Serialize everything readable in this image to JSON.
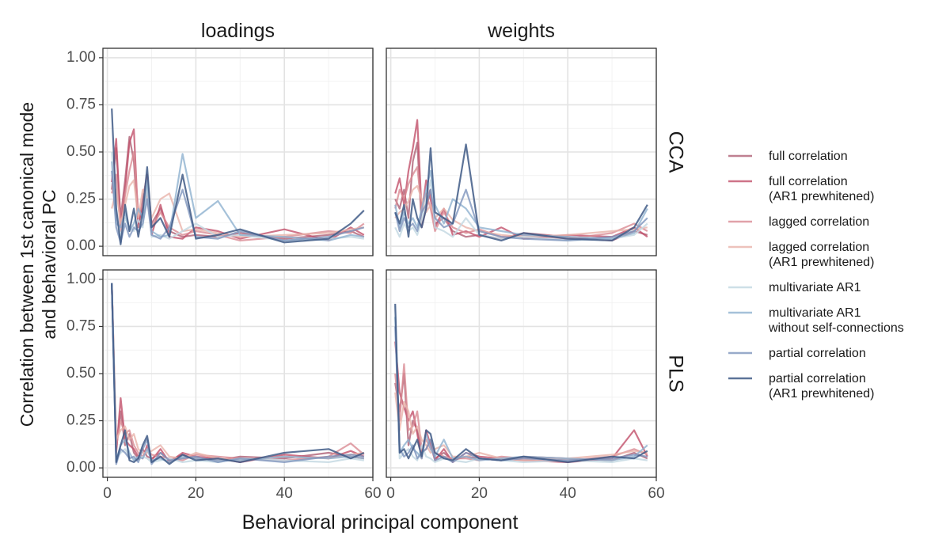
{
  "chart_data": {
    "type": "line",
    "layout": "facet-grid-2x2",
    "column_strips": [
      "loadings",
      "weights"
    ],
    "row_strips": [
      "CCA",
      "PLS"
    ],
    "xlabel": "Behavioral principal component",
    "ylabel_lines": [
      "Correlation between 1st canonical mode",
      "and behavioral PC"
    ],
    "xlim": [
      -1,
      60
    ],
    "ylim": [
      -0.05,
      1.05
    ],
    "x_ticks": [
      0,
      20,
      40,
      60
    ],
    "x_tick_labels": [
      "0",
      "20",
      "40",
      "60"
    ],
    "y_ticks": [
      0,
      0.25,
      0.5,
      0.75,
      1.0
    ],
    "y_tick_labels": [
      "0.00",
      "0.25",
      "0.50",
      "0.75",
      "1.00"
    ],
    "grid": true,
    "legend_position": "right",
    "series": [
      {
        "name": "full correlation",
        "label_lines": [
          "full correlation"
        ],
        "color": "#a9566c",
        "opacity": 0.75
      },
      {
        "name": "full correlation (AR1 prewhitened)",
        "label_lines": [
          "full correlation",
          "(AR1 prewhitened)"
        ],
        "color": "#c2506a",
        "opacity": 0.8
      },
      {
        "name": "lagged correlation",
        "label_lines": [
          "lagged correlation"
        ],
        "color": "#d98b94",
        "opacity": 0.8
      },
      {
        "name": "lagged correlation (AR1 prewhitened)",
        "label_lines": [
          "lagged correlation",
          "(AR1 prewhitened)"
        ],
        "color": "#e9b3aa",
        "opacity": 0.8
      },
      {
        "name": "multivariate AR1",
        "label_lines": [
          "multivariate AR1"
        ],
        "color": "#c5d9e3",
        "opacity": 0.85
      },
      {
        "name": "multivariate AR1 without self-connections",
        "label_lines": [
          "multivariate AR1",
          "without self-connections"
        ],
        "color": "#8fb1cf",
        "opacity": 0.8
      },
      {
        "name": "partial correlation",
        "label_lines": [
          "partial correlation"
        ],
        "color": "#7e95bd",
        "opacity": 0.8
      },
      {
        "name": "partial correlation (AR1 prewhitened)",
        "label_lines": [
          "partial correlation",
          "(AR1 prewhitened)"
        ],
        "color": "#3f5a86",
        "opacity": 0.85
      }
    ],
    "panels": [
      {
        "id": "cca-loadings",
        "col": 0,
        "row": 0,
        "x": [
          1,
          2,
          3,
          4,
          5,
          6,
          7,
          8,
          9,
          10,
          12,
          14,
          17,
          20,
          25,
          30,
          40,
          50,
          55,
          58
        ],
        "values": [
          [
            0.3,
            0.52,
            0.15,
            0.35,
            0.58,
            0.45,
            0.1,
            0.25,
            0.38,
            0.12,
            0.2,
            0.08,
            0.05,
            0.06,
            0.05,
            0.07,
            0.04,
            0.06,
            0.08,
            0.05
          ],
          [
            0.34,
            0.57,
            0.1,
            0.3,
            0.55,
            0.62,
            0.12,
            0.2,
            0.28,
            0.06,
            0.22,
            0.05,
            0.04,
            0.1,
            0.08,
            0.04,
            0.09,
            0.03,
            0.1,
            0.06
          ],
          [
            0.28,
            0.38,
            0.08,
            0.27,
            0.4,
            0.5,
            0.18,
            0.22,
            0.3,
            0.1,
            0.18,
            0.1,
            0.06,
            0.08,
            0.06,
            0.03,
            0.05,
            0.08,
            0.07,
            0.12
          ],
          [
            0.2,
            0.3,
            0.12,
            0.22,
            0.32,
            0.35,
            0.15,
            0.3,
            0.25,
            0.15,
            0.25,
            0.28,
            0.08,
            0.09,
            0.07,
            0.05,
            0.06,
            0.07,
            0.09,
            0.1
          ],
          [
            0.5,
            0.2,
            0.05,
            0.15,
            0.1,
            0.08,
            0.14,
            0.1,
            0.32,
            0.05,
            0.06,
            0.04,
            0.08,
            0.12,
            0.05,
            0.06,
            0.03,
            0.04,
            0.05,
            0.04
          ],
          [
            0.45,
            0.12,
            0.1,
            0.18,
            0.08,
            0.12,
            0.2,
            0.15,
            0.35,
            0.08,
            0.05,
            0.06,
            0.49,
            0.15,
            0.24,
            0.06,
            0.05,
            0.03,
            0.06,
            0.05
          ],
          [
            0.4,
            0.1,
            0.02,
            0.12,
            0.05,
            0.1,
            0.08,
            0.12,
            0.25,
            0.06,
            0.04,
            0.1,
            0.3,
            0.05,
            0.04,
            0.08,
            0.03,
            0.05,
            0.08,
            0.1
          ],
          [
            0.73,
            0.2,
            0.01,
            0.22,
            0.08,
            0.2,
            0.05,
            0.18,
            0.42,
            0.1,
            0.15,
            0.05,
            0.38,
            0.04,
            0.06,
            0.09,
            0.02,
            0.04,
            0.12,
            0.19
          ]
        ]
      },
      {
        "id": "cca-weights",
        "col": 1,
        "row": 0,
        "x": [
          1,
          2,
          3,
          4,
          5,
          6,
          7,
          8,
          9,
          10,
          12,
          14,
          17,
          20,
          25,
          30,
          40,
          50,
          55,
          58
        ],
        "values": [
          [
            0.25,
            0.2,
            0.3,
            0.15,
            0.45,
            0.55,
            0.1,
            0.2,
            0.3,
            0.12,
            0.15,
            0.08,
            0.05,
            0.06,
            0.04,
            0.07,
            0.05,
            0.03,
            0.08,
            0.06
          ],
          [
            0.28,
            0.36,
            0.22,
            0.4,
            0.52,
            0.67,
            0.18,
            0.35,
            0.25,
            0.1,
            0.2,
            0.06,
            0.08,
            0.05,
            0.1,
            0.04,
            0.06,
            0.05,
            0.1,
            0.05
          ],
          [
            0.2,
            0.3,
            0.25,
            0.33,
            0.38,
            0.42,
            0.2,
            0.28,
            0.2,
            0.08,
            0.18,
            0.1,
            0.07,
            0.09,
            0.05,
            0.06,
            0.04,
            0.07,
            0.12,
            0.08
          ],
          [
            0.15,
            0.18,
            0.2,
            0.24,
            0.3,
            0.32,
            0.25,
            0.18,
            0.22,
            0.15,
            0.2,
            0.14,
            0.1,
            0.08,
            0.06,
            0.05,
            0.06,
            0.08,
            0.09,
            0.1
          ],
          [
            0.1,
            0.05,
            0.12,
            0.08,
            0.1,
            0.06,
            0.14,
            0.25,
            0.35,
            0.1,
            0.08,
            0.05,
            0.15,
            0.06,
            0.04,
            0.05,
            0.03,
            0.04,
            0.06,
            0.12
          ],
          [
            0.22,
            0.1,
            0.18,
            0.12,
            0.15,
            0.1,
            0.2,
            0.3,
            0.4,
            0.22,
            0.12,
            0.25,
            0.2,
            0.1,
            0.08,
            0.06,
            0.05,
            0.04,
            0.07,
            0.2
          ],
          [
            0.18,
            0.08,
            0.15,
            0.1,
            0.12,
            0.08,
            0.18,
            0.22,
            0.3,
            0.15,
            0.1,
            0.12,
            0.3,
            0.08,
            0.05,
            0.04,
            0.03,
            0.05,
            0.08,
            0.15
          ],
          [
            0.18,
            0.12,
            0.22,
            0.05,
            0.25,
            0.15,
            0.1,
            0.2,
            0.52,
            0.18,
            0.15,
            0.12,
            0.54,
            0.06,
            0.03,
            0.07,
            0.04,
            0.03,
            0.1,
            0.22
          ]
        ]
      },
      {
        "id": "pls-loadings",
        "col": 0,
        "row": 1,
        "x": [
          1,
          2,
          3,
          4,
          5,
          6,
          7,
          8,
          9,
          10,
          12,
          14,
          17,
          20,
          25,
          30,
          40,
          50,
          55,
          58
        ],
        "values": [
          [
            0.98,
            0.1,
            0.3,
            0.12,
            0.18,
            0.08,
            0.05,
            0.1,
            0.06,
            0.05,
            0.08,
            0.04,
            0.07,
            0.05,
            0.04,
            0.06,
            0.05,
            0.08,
            0.06,
            0.05
          ],
          [
            0.98,
            0.08,
            0.37,
            0.15,
            0.12,
            0.1,
            0.06,
            0.05,
            0.12,
            0.04,
            0.1,
            0.03,
            0.08,
            0.06,
            0.05,
            0.03,
            0.07,
            0.05,
            0.09,
            0.06
          ],
          [
            0.98,
            0.12,
            0.25,
            0.18,
            0.2,
            0.12,
            0.08,
            0.06,
            0.1,
            0.07,
            0.06,
            0.05,
            0.04,
            0.07,
            0.06,
            0.05,
            0.04,
            0.06,
            0.13,
            0.07
          ],
          [
            0.98,
            0.15,
            0.2,
            0.22,
            0.15,
            0.18,
            0.1,
            0.08,
            0.08,
            0.09,
            0.12,
            0.06,
            0.05,
            0.08,
            0.05,
            0.04,
            0.06,
            0.05,
            0.07,
            0.08
          ],
          [
            0.98,
            0.05,
            0.08,
            0.1,
            0.06,
            0.05,
            0.04,
            0.06,
            0.05,
            0.03,
            0.04,
            0.05,
            0.03,
            0.04,
            0.03,
            0.05,
            0.04,
            0.03,
            0.05,
            0.04
          ],
          [
            0.98,
            0.04,
            0.12,
            0.15,
            0.08,
            0.04,
            0.06,
            0.05,
            0.1,
            0.04,
            0.05,
            0.03,
            0.06,
            0.05,
            0.04,
            0.04,
            0.06,
            0.05,
            0.06,
            0.05
          ],
          [
            0.98,
            0.02,
            0.1,
            0.08,
            0.05,
            0.06,
            0.03,
            0.1,
            0.15,
            0.02,
            0.08,
            0.04,
            0.05,
            0.06,
            0.03,
            0.05,
            0.03,
            0.06,
            0.07,
            0.06
          ],
          [
            0.98,
            0.03,
            0.12,
            0.2,
            0.04,
            0.03,
            0.05,
            0.12,
            0.17,
            0.03,
            0.06,
            0.02,
            0.07,
            0.04,
            0.05,
            0.03,
            0.08,
            0.1,
            0.05,
            0.08
          ]
        ]
      },
      {
        "id": "pls-weights",
        "col": 1,
        "row": 1,
        "x": [
          1,
          2,
          3,
          4,
          5,
          6,
          7,
          8,
          9,
          10,
          12,
          14,
          17,
          20,
          25,
          30,
          40,
          50,
          55,
          58
        ],
        "values": [
          [
            0.45,
            0.3,
            0.5,
            0.12,
            0.25,
            0.2,
            0.08,
            0.1,
            0.15,
            0.05,
            0.08,
            0.04,
            0.06,
            0.05,
            0.04,
            0.06,
            0.05,
            0.04,
            0.08,
            0.05
          ],
          [
            0.67,
            0.4,
            0.32,
            0.25,
            0.3,
            0.18,
            0.05,
            0.2,
            0.12,
            0.04,
            0.1,
            0.03,
            0.08,
            0.06,
            0.05,
            0.04,
            0.03,
            0.05,
            0.2,
            0.06
          ],
          [
            0.5,
            0.25,
            0.55,
            0.2,
            0.22,
            0.3,
            0.1,
            0.15,
            0.1,
            0.08,
            0.06,
            0.05,
            0.05,
            0.04,
            0.06,
            0.05,
            0.04,
            0.06,
            0.1,
            0.07
          ],
          [
            0.4,
            0.2,
            0.35,
            0.3,
            0.18,
            0.22,
            0.15,
            0.12,
            0.08,
            0.1,
            0.12,
            0.06,
            0.06,
            0.08,
            0.05,
            0.04,
            0.05,
            0.07,
            0.09,
            0.08
          ],
          [
            0.86,
            0.05,
            0.08,
            0.1,
            0.06,
            0.04,
            0.12,
            0.06,
            0.05,
            0.03,
            0.05,
            0.04,
            0.03,
            0.05,
            0.04,
            0.03,
            0.04,
            0.03,
            0.05,
            0.04
          ],
          [
            0.8,
            0.08,
            0.12,
            0.15,
            0.1,
            0.08,
            0.05,
            0.18,
            0.1,
            0.06,
            0.15,
            0.05,
            0.06,
            0.04,
            0.05,
            0.06,
            0.05,
            0.04,
            0.06,
            0.12
          ],
          [
            0.75,
            0.1,
            0.06,
            0.08,
            0.12,
            0.05,
            0.08,
            0.1,
            0.15,
            0.04,
            0.06,
            0.03,
            0.08,
            0.05,
            0.04,
            0.05,
            0.04,
            0.05,
            0.07,
            0.06
          ],
          [
            0.87,
            0.08,
            0.1,
            0.05,
            0.1,
            0.15,
            0.06,
            0.2,
            0.18,
            0.08,
            0.05,
            0.04,
            0.1,
            0.05,
            0.04,
            0.06,
            0.03,
            0.06,
            0.05,
            0.09
          ]
        ]
      }
    ]
  }
}
